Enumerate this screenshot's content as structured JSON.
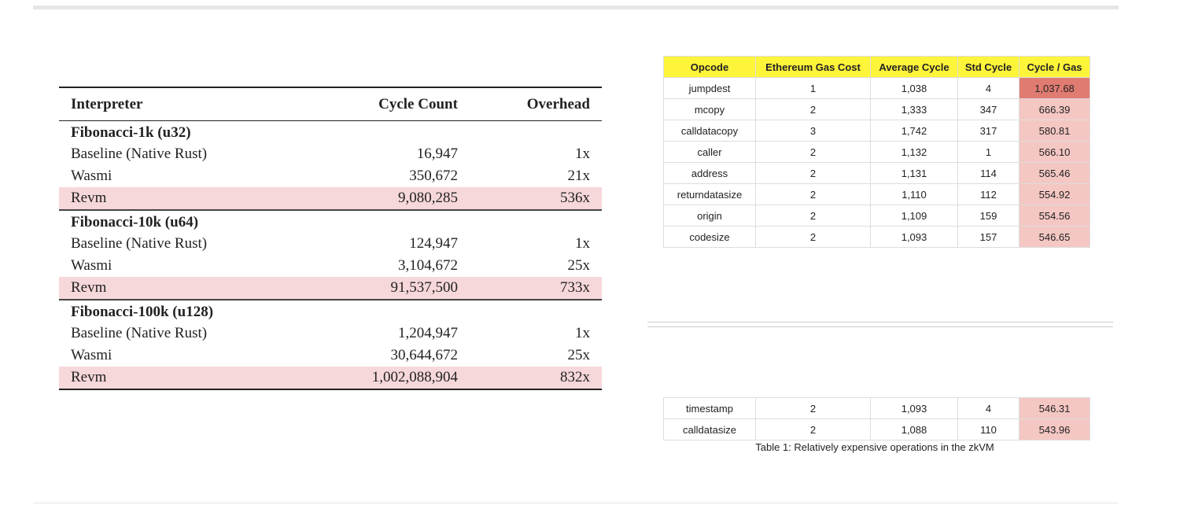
{
  "left_table": {
    "header": [
      "Interpreter",
      "Cycle Count",
      "Overhead"
    ],
    "groups": [
      {
        "title": "Fibonacci-1k (u32)",
        "rows": [
          [
            "Baseline (Native Rust)",
            "16,947",
            "1x"
          ],
          [
            "Wasmi",
            "350,672",
            "21x"
          ],
          [
            "Revm",
            "9,080,285",
            "536x"
          ]
        ]
      },
      {
        "title": "Fibonacci-10k (u64)",
        "rows": [
          [
            "Baseline (Native Rust)",
            "124,947",
            "1x"
          ],
          [
            "Wasmi",
            "3,104,672",
            "25x"
          ],
          [
            "Revm",
            "91,537,500",
            "733x"
          ]
        ]
      },
      {
        "title": "Fibonacci-100k (u128)",
        "rows": [
          [
            "Baseline (Native Rust)",
            "1,204,947",
            "1x"
          ],
          [
            "Wasmi",
            "30,644,672",
            "25x"
          ],
          [
            "Revm",
            "1,002,088,904",
            "832x"
          ]
        ]
      }
    ]
  },
  "right_table": {
    "header": [
      "Opcode",
      "Ethereum Gas Cost",
      "Average Cycle",
      "Std Cycle",
      "Cycle / Gas"
    ],
    "rows": [
      [
        "jumpdest",
        "1",
        "1,038",
        "4",
        "1,037.68"
      ],
      [
        "mcopy",
        "2",
        "1,333",
        "347",
        "666.39"
      ],
      [
        "calldatacopy",
        "3",
        "1,742",
        "317",
        "580.81"
      ],
      [
        "caller",
        "2",
        "1,132",
        "1",
        "566.10"
      ],
      [
        "address",
        "2",
        "1,131",
        "114",
        "565.46"
      ],
      [
        "returndatasize",
        "2",
        "1,110",
        "112",
        "554.92"
      ],
      [
        "origin",
        "2",
        "1,109",
        "159",
        "554.56"
      ],
      [
        "codesize",
        "2",
        "1,093",
        "157",
        "546.65"
      ]
    ],
    "continued_rows": [
      [
        "timestamp",
        "2",
        "1,093",
        "4",
        "546.31"
      ],
      [
        "calldatasize",
        "2",
        "1,088",
        "110",
        "543.96"
      ]
    ],
    "caption": "Table 1: Relatively expensive operations in the zkVM"
  }
}
